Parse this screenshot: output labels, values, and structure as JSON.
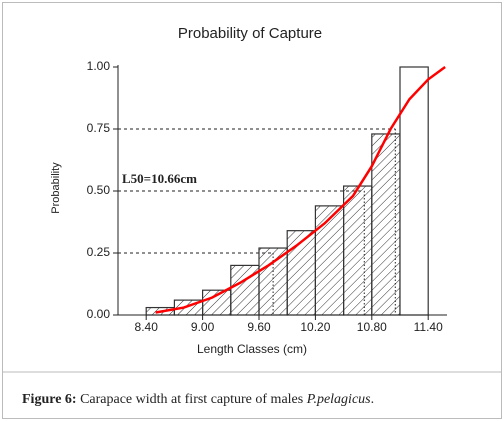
{
  "chart_data": {
    "type": "histogram",
    "title": "Probability of Capture",
    "x_label": "Length Classes (cm)",
    "y_label": "Probability",
    "annotation": "L50=10.66cm",
    "bins": [
      8.4,
      8.7,
      9.0,
      9.3,
      9.6,
      9.9,
      10.2,
      10.5,
      10.8,
      11.1,
      11.4
    ],
    "values": [
      0.03,
      0.06,
      0.1,
      0.2,
      0.27,
      0.34,
      0.44,
      0.52,
      0.73,
      1.0
    ],
    "hatch": [
      true,
      true,
      true,
      true,
      true,
      true,
      true,
      true,
      true,
      false
    ],
    "bar_color": "#333333",
    "curve": {
      "color": "#ff0000",
      "x": [
        8.5,
        8.8,
        9.1,
        9.4,
        9.7,
        10.0,
        10.3,
        10.6,
        10.8,
        11.0,
        11.2,
        11.4,
        11.58
      ],
      "values": [
        0.01,
        0.03,
        0.07,
        0.13,
        0.2,
        0.28,
        0.37,
        0.48,
        0.6,
        0.75,
        0.87,
        0.95,
        1.0
      ]
    },
    "guides": [
      {
        "x": 9.75,
        "y": 0.25
      },
      {
        "x": 10.72,
        "y": 0.5
      },
      {
        "x": 11.05,
        "y": 0.75
      }
    ],
    "xlim": [
      8.1,
      11.6
    ],
    "ylim": [
      0,
      1
    ],
    "xticks": [
      {
        "value": 8.4,
        "label": "8.40"
      },
      {
        "value": 9.0,
        "label": "9.00"
      },
      {
        "value": 9.6,
        "label": "9.60"
      },
      {
        "value": 10.2,
        "label": "10.20"
      },
      {
        "value": 10.8,
        "label": "10.80"
      },
      {
        "value": 11.4,
        "label": "11.40"
      }
    ],
    "yticks": [
      {
        "value": 0,
        "label": "0.00"
      },
      {
        "value": 0.25,
        "label": "0.25"
      },
      {
        "value": 0.5,
        "label": "0.50"
      },
      {
        "value": 0.75,
        "label": "0.75"
      },
      {
        "value": 1,
        "label": "1.00"
      }
    ]
  },
  "caption": {
    "label": "Figure 6:",
    "text": "Carapace width at first capture of males",
    "species": "P.pelagicus",
    "end": "."
  }
}
